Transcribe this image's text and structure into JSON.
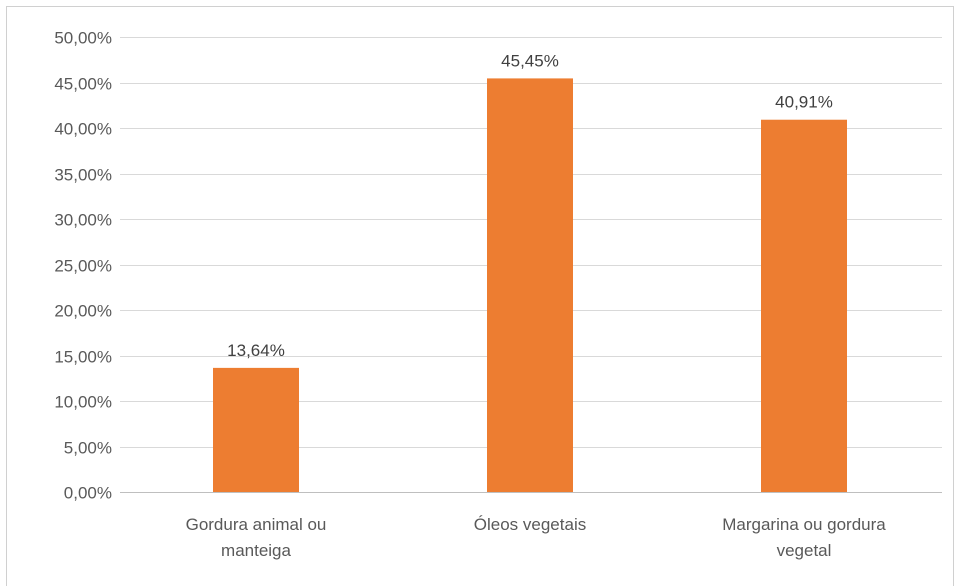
{
  "chart_data": {
    "type": "bar",
    "title": "",
    "xlabel": "",
    "ylabel": "",
    "categories": [
      [
        "Gordura animal ou",
        "manteiga"
      ],
      [
        "Óleos vegetais"
      ],
      [
        "Margarina ou gordura",
        "vegetal"
      ]
    ],
    "values": [
      13.64,
      45.45,
      40.91
    ],
    "data_labels": [
      "13,64%",
      "45,45%",
      "40,91%"
    ],
    "ylim": [
      0,
      50
    ],
    "yticks": [
      0,
      5,
      10,
      15,
      20,
      25,
      30,
      35,
      40,
      45,
      50
    ],
    "ytick_labels": [
      "0,00%",
      "5,00%",
      "10,00%",
      "15,00%",
      "20,00%",
      "25,00%",
      "30,00%",
      "35,00%",
      "40,00%",
      "45,00%",
      "50,00%"
    ],
    "grid": true,
    "legend": "none",
    "bar_color": "#ed7d31",
    "grid_color": "#d9d9d9",
    "axis_color": "#bfbfbf"
  }
}
